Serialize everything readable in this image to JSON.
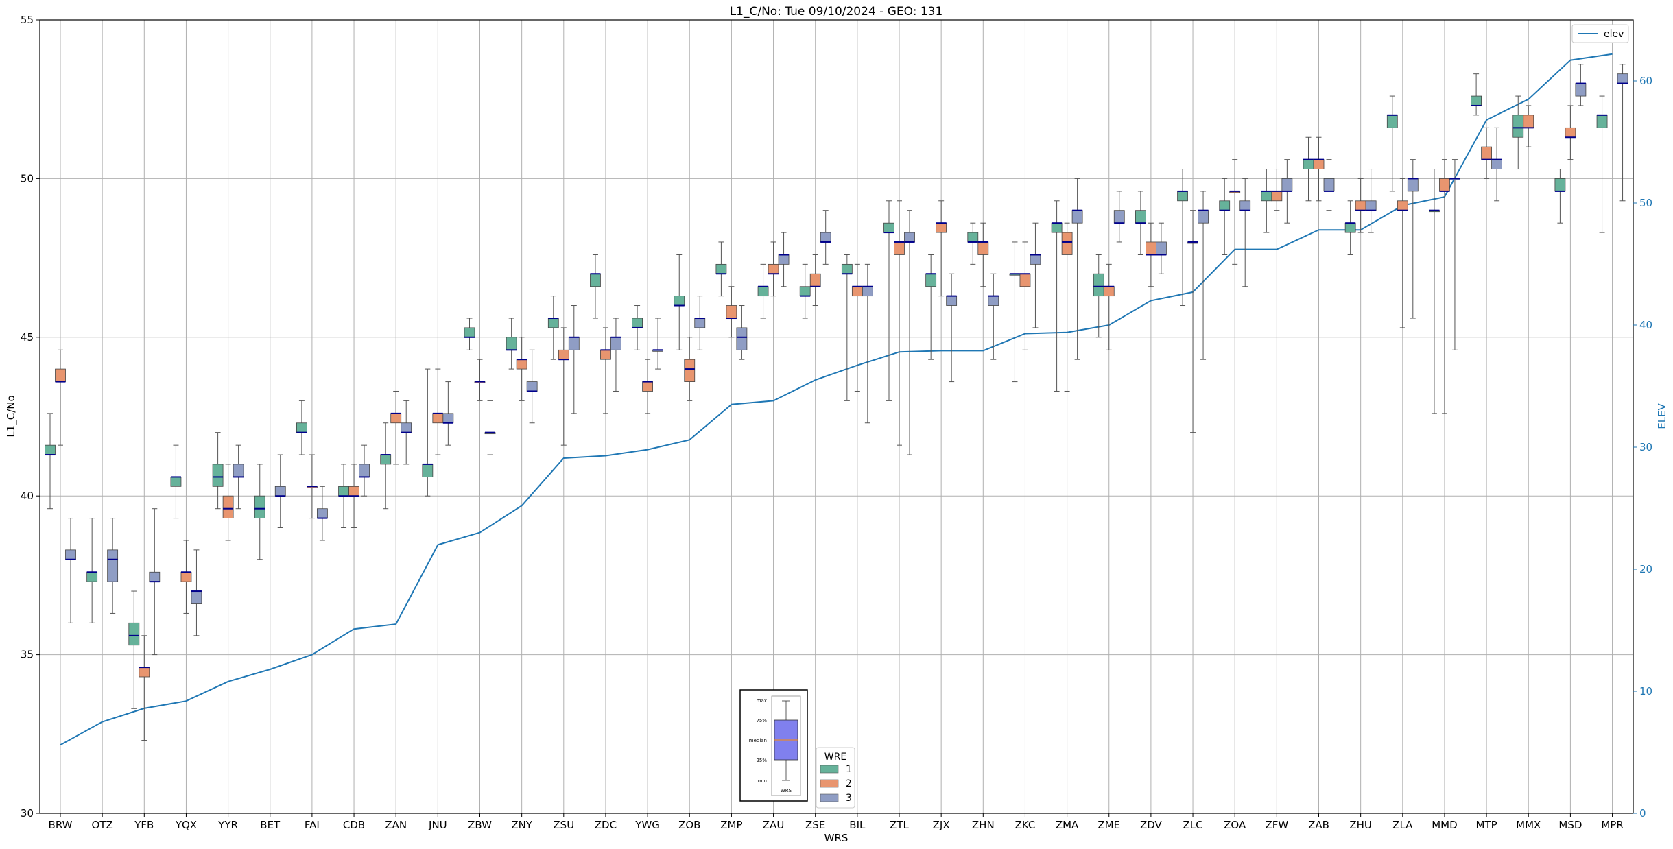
{
  "chart_data": {
    "type": "box",
    "title": "L1_C/No: Tue 09/10/2024 - GEO: 131",
    "xlabel": "WRS",
    "ylabel": "L1_C/No",
    "ylabel_right": "ELEV",
    "ylim": [
      30,
      55
    ],
    "ylim_right": [
      0,
      65
    ],
    "yticks": [
      "30",
      "35",
      "40",
      "45",
      "50",
      "55"
    ],
    "yticks_right": [
      "0",
      "10",
      "20",
      "30",
      "40",
      "50",
      "60"
    ],
    "grid": true,
    "categories": [
      "BRW",
      "OTZ",
      "YFB",
      "YQX",
      "YYR",
      "BET",
      "FAI",
      "CDB",
      "ZAN",
      "JNU",
      "ZBW",
      "ZNY",
      "ZSU",
      "ZDC",
      "YWG",
      "ZOB",
      "ZMP",
      "ZAU",
      "ZSE",
      "BIL",
      "ZTL",
      "ZJX",
      "ZHN",
      "ZKC",
      "ZMA",
      "ZME",
      "ZDV",
      "ZLC",
      "ZOA",
      "ZFW",
      "ZAB",
      "ZHU",
      "ZLA",
      "MMD",
      "MTP",
      "MMX",
      "MSD",
      "MPR"
    ],
    "wre_legend": {
      "title": "WRE",
      "entries": [
        "1",
        "2",
        "3"
      ]
    },
    "colors": {
      "1": "#66b29a",
      "2": "#e8956f",
      "3": "#8f9dc4",
      "elev": "#1f77b4",
      "median": "#00008b"
    },
    "elev_legend": "elev",
    "elev": [
      5.6,
      7.5,
      8.6,
      9.2,
      10.8,
      11.8,
      13.0,
      15.1,
      15.5,
      22.0,
      23.0,
      25.2,
      29.1,
      29.3,
      29.8,
      30.6,
      33.5,
      33.8,
      35.5,
      36.7,
      37.8,
      37.9,
      37.9,
      39.3,
      39.4,
      40.0,
      42.0,
      42.7,
      46.2,
      46.2,
      47.8,
      47.8,
      49.8,
      50.5,
      56.8,
      58.5,
      61.7,
      62.2
    ],
    "boxes": [
      {
        "cat": "BRW",
        "wre": 1,
        "min": 39.6,
        "q1": 41.3,
        "med": 41.3,
        "q3": 41.6,
        "max": 42.6
      },
      {
        "cat": "BRW",
        "wre": 2,
        "min": 41.6,
        "q1": 43.6,
        "med": 43.6,
        "q3": 44.0,
        "max": 44.6
      },
      {
        "cat": "BRW",
        "wre": 3,
        "min": 36.0,
        "q1": 38.0,
        "med": 38.0,
        "q3": 38.3,
        "max": 39.3
      },
      {
        "cat": "OTZ",
        "wre": 1,
        "min": 36.0,
        "q1": 37.3,
        "med": 37.6,
        "q3": 37.6,
        "max": 39.3
      },
      {
        "cat": "OTZ",
        "wre": 3,
        "min": 36.3,
        "q1": 37.3,
        "med": 38.0,
        "q3": 38.3,
        "max": 39.3
      },
      {
        "cat": "YFB",
        "wre": 1,
        "min": 33.3,
        "q1": 35.3,
        "med": 35.6,
        "q3": 36.0,
        "max": 37.0
      },
      {
        "cat": "YFB",
        "wre": 2,
        "min": 32.3,
        "q1": 34.3,
        "med": 34.6,
        "q3": 34.6,
        "max": 35.6
      },
      {
        "cat": "YFB",
        "wre": 3,
        "min": 35.0,
        "q1": 37.3,
        "med": 37.3,
        "q3": 37.6,
        "max": 39.6
      },
      {
        "cat": "YQX",
        "wre": 1,
        "min": 39.3,
        "q1": 40.3,
        "med": 40.6,
        "q3": 40.6,
        "max": 41.6
      },
      {
        "cat": "YQX",
        "wre": 2,
        "min": 36.3,
        "q1": 37.3,
        "med": 37.6,
        "q3": 37.6,
        "max": 38.6
      },
      {
        "cat": "YQX",
        "wre": 3,
        "min": 35.6,
        "q1": 36.6,
        "med": 37.0,
        "q3": 37.0,
        "max": 38.3
      },
      {
        "cat": "YYR",
        "wre": 1,
        "min": 39.6,
        "q1": 40.3,
        "med": 40.6,
        "q3": 41.0,
        "max": 42.0
      },
      {
        "cat": "YYR",
        "wre": 2,
        "min": 38.6,
        "q1": 39.3,
        "med": 39.6,
        "q3": 40.0,
        "max": 41.0
      },
      {
        "cat": "YYR",
        "wre": 3,
        "min": 39.6,
        "q1": 40.6,
        "med": 40.6,
        "q3": 41.0,
        "max": 41.6
      },
      {
        "cat": "BET",
        "wre": 1,
        "min": 38.0,
        "q1": 39.3,
        "med": 39.6,
        "q3": 40.0,
        "max": 41.0
      },
      {
        "cat": "BET",
        "wre": 3,
        "min": 39.0,
        "q1": 40.0,
        "med": 40.0,
        "q3": 40.3,
        "max": 41.3
      },
      {
        "cat": "FAI",
        "wre": 1,
        "min": 41.3,
        "q1": 42.0,
        "med": 42.0,
        "q3": 42.3,
        "max": 43.0
      },
      {
        "cat": "FAI",
        "wre": 2,
        "min": 39.3,
        "q1": 40.3,
        "med": 40.3,
        "q3": 40.3,
        "max": 41.3
      },
      {
        "cat": "FAI",
        "wre": 3,
        "min": 38.6,
        "q1": 39.3,
        "med": 39.3,
        "q3": 39.6,
        "max": 40.3
      },
      {
        "cat": "CDB",
        "wre": 1,
        "min": 39.0,
        "q1": 40.0,
        "med": 40.0,
        "q3": 40.3,
        "max": 41.0
      },
      {
        "cat": "CDB",
        "wre": 2,
        "min": 39.0,
        "q1": 40.0,
        "med": 40.0,
        "q3": 40.3,
        "max": 41.0
      },
      {
        "cat": "CDB",
        "wre": 3,
        "min": 40.0,
        "q1": 40.6,
        "med": 40.6,
        "q3": 41.0,
        "max": 41.6
      },
      {
        "cat": "ZAN",
        "wre": 1,
        "min": 39.6,
        "q1": 41.0,
        "med": 41.3,
        "q3": 41.3,
        "max": 42.3
      },
      {
        "cat": "ZAN",
        "wre": 2,
        "min": 41.0,
        "q1": 42.3,
        "med": 42.6,
        "q3": 42.6,
        "max": 43.3
      },
      {
        "cat": "ZAN",
        "wre": 3,
        "min": 41.0,
        "q1": 42.0,
        "med": 42.0,
        "q3": 42.3,
        "max": 43.0
      },
      {
        "cat": "JNU",
        "wre": 1,
        "min": 40.0,
        "q1": 40.6,
        "med": 41.0,
        "q3": 41.0,
        "max": 44.0
      },
      {
        "cat": "JNU",
        "wre": 2,
        "min": 41.3,
        "q1": 42.3,
        "med": 42.6,
        "q3": 42.6,
        "max": 44.0
      },
      {
        "cat": "JNU",
        "wre": 3,
        "min": 41.6,
        "q1": 42.3,
        "med": 42.3,
        "q3": 42.6,
        "max": 43.6
      },
      {
        "cat": "ZBW",
        "wre": 1,
        "min": 44.6,
        "q1": 45.0,
        "med": 45.0,
        "q3": 45.3,
        "max": 45.6
      },
      {
        "cat": "ZBW",
        "wre": 2,
        "min": 43.0,
        "q1": 43.6,
        "med": 43.6,
        "q3": 43.6,
        "max": 44.3
      },
      {
        "cat": "ZBW",
        "wre": 3,
        "min": 41.3,
        "q1": 42.0,
        "med": 42.0,
        "q3": 42.0,
        "max": 43.0
      },
      {
        "cat": "ZNY",
        "wre": 1,
        "min": 44.0,
        "q1": 44.6,
        "med": 44.6,
        "q3": 45.0,
        "max": 45.6
      },
      {
        "cat": "ZNY",
        "wre": 2,
        "min": 43.0,
        "q1": 44.0,
        "med": 44.3,
        "q3": 44.3,
        "max": 45.0
      },
      {
        "cat": "ZNY",
        "wre": 3,
        "min": 42.3,
        "q1": 43.3,
        "med": 43.3,
        "q3": 43.6,
        "max": 44.6
      },
      {
        "cat": "ZSU",
        "wre": 1,
        "min": 44.3,
        "q1": 45.3,
        "med": 45.6,
        "q3": 45.6,
        "max": 46.3
      },
      {
        "cat": "ZSU",
        "wre": 2,
        "min": 41.6,
        "q1": 44.3,
        "med": 44.3,
        "q3": 44.6,
        "max": 45.3
      },
      {
        "cat": "ZSU",
        "wre": 3,
        "min": 42.6,
        "q1": 44.6,
        "med": 45.0,
        "q3": 45.0,
        "max": 46.0
      },
      {
        "cat": "ZDC",
        "wre": 1,
        "min": 45.6,
        "q1": 46.6,
        "med": 47.0,
        "q3": 47.0,
        "max": 47.6
      },
      {
        "cat": "ZDC",
        "wre": 2,
        "min": 42.6,
        "q1": 44.3,
        "med": 44.6,
        "q3": 44.6,
        "max": 45.3
      },
      {
        "cat": "ZDC",
        "wre": 3,
        "min": 43.3,
        "q1": 44.6,
        "med": 45.0,
        "q3": 45.0,
        "max": 45.6
      },
      {
        "cat": "YWG",
        "wre": 1,
        "min": 44.6,
        "q1": 45.3,
        "med": 45.3,
        "q3": 45.6,
        "max": 46.0
      },
      {
        "cat": "YWG",
        "wre": 2,
        "min": 42.6,
        "q1": 43.3,
        "med": 43.6,
        "q3": 43.6,
        "max": 44.3
      },
      {
        "cat": "YWG",
        "wre": 3,
        "min": 44.0,
        "q1": 44.6,
        "med": 44.6,
        "q3": 44.6,
        "max": 45.6
      },
      {
        "cat": "ZOB",
        "wre": 1,
        "min": 44.6,
        "q1": 46.0,
        "med": 46.0,
        "q3": 46.3,
        "max": 47.6
      },
      {
        "cat": "ZOB",
        "wre": 2,
        "min": 43.0,
        "q1": 43.6,
        "med": 44.0,
        "q3": 44.3,
        "max": 45.0
      },
      {
        "cat": "ZOB",
        "wre": 3,
        "min": 44.6,
        "q1": 45.3,
        "med": 45.6,
        "q3": 45.6,
        "max": 46.3
      },
      {
        "cat": "ZMP",
        "wre": 1,
        "min": 46.3,
        "q1": 47.0,
        "med": 47.0,
        "q3": 47.3,
        "max": 48.0
      },
      {
        "cat": "ZMP",
        "wre": 2,
        "min": 45.0,
        "q1": 45.6,
        "med": 45.6,
        "q3": 46.0,
        "max": 46.6
      },
      {
        "cat": "ZMP",
        "wre": 3,
        "min": 44.3,
        "q1": 44.6,
        "med": 45.0,
        "q3": 45.3,
        "max": 46.0
      },
      {
        "cat": "ZAU",
        "wre": 1,
        "min": 45.6,
        "q1": 46.3,
        "med": 46.6,
        "q3": 46.6,
        "max": 47.3
      },
      {
        "cat": "ZAU",
        "wre": 2,
        "min": 46.3,
        "q1": 47.0,
        "med": 47.0,
        "q3": 47.3,
        "max": 48.0
      },
      {
        "cat": "ZAU",
        "wre": 3,
        "min": 46.6,
        "q1": 47.3,
        "med": 47.6,
        "q3": 47.6,
        "max": 48.3
      },
      {
        "cat": "ZSE",
        "wre": 1,
        "min": 45.6,
        "q1": 46.3,
        "med": 46.3,
        "q3": 46.6,
        "max": 47.3
      },
      {
        "cat": "ZSE",
        "wre": 2,
        "min": 46.0,
        "q1": 46.6,
        "med": 46.6,
        "q3": 47.0,
        "max": 47.6
      },
      {
        "cat": "ZSE",
        "wre": 3,
        "min": 47.3,
        "q1": 48.0,
        "med": 48.0,
        "q3": 48.3,
        "max": 49.0
      },
      {
        "cat": "BIL",
        "wre": 1,
        "min": 43.0,
        "q1": 47.0,
        "med": 47.0,
        "q3": 47.3,
        "max": 47.6
      },
      {
        "cat": "BIL",
        "wre": 2,
        "min": 43.3,
        "q1": 46.3,
        "med": 46.6,
        "q3": 46.6,
        "max": 47.3
      },
      {
        "cat": "BIL",
        "wre": 3,
        "min": 42.3,
        "q1": 46.3,
        "med": 46.6,
        "q3": 46.6,
        "max": 47.3
      },
      {
        "cat": "ZTL",
        "wre": 1,
        "min": 43.0,
        "q1": 48.3,
        "med": 48.3,
        "q3": 48.6,
        "max": 49.3
      },
      {
        "cat": "ZTL",
        "wre": 2,
        "min": 41.6,
        "q1": 47.6,
        "med": 48.0,
        "q3": 48.0,
        "max": 49.3
      },
      {
        "cat": "ZTL",
        "wre": 3,
        "min": 41.3,
        "q1": 48.0,
        "med": 48.0,
        "q3": 48.3,
        "max": 49.0
      },
      {
        "cat": "ZJX",
        "wre": 1,
        "min": 44.3,
        "q1": 46.6,
        "med": 47.0,
        "q3": 47.0,
        "max": 47.6
      },
      {
        "cat": "ZJX",
        "wre": 2,
        "min": 46.3,
        "q1": 48.3,
        "med": 48.6,
        "q3": 48.6,
        "max": 49.3
      },
      {
        "cat": "ZJX",
        "wre": 3,
        "min": 43.6,
        "q1": 46.0,
        "med": 46.3,
        "q3": 46.3,
        "max": 47.0
      },
      {
        "cat": "ZHN",
        "wre": 1,
        "min": 47.3,
        "q1": 48.0,
        "med": 48.0,
        "q3": 48.3,
        "max": 48.6
      },
      {
        "cat": "ZHN",
        "wre": 2,
        "min": 46.6,
        "q1": 47.6,
        "med": 48.0,
        "q3": 48.0,
        "max": 48.6
      },
      {
        "cat": "ZHN",
        "wre": 3,
        "min": 44.3,
        "q1": 46.0,
        "med": 46.3,
        "q3": 46.3,
        "max": 47.0
      },
      {
        "cat": "ZKC",
        "wre": 1,
        "min": 43.6,
        "q1": 47.0,
        "med": 47.0,
        "q3": 47.0,
        "max": 48.0
      },
      {
        "cat": "ZKC",
        "wre": 2,
        "min": 44.6,
        "q1": 46.6,
        "med": 47.0,
        "q3": 47.0,
        "max": 48.0
      },
      {
        "cat": "ZKC",
        "wre": 3,
        "min": 45.3,
        "q1": 47.3,
        "med": 47.6,
        "q3": 47.6,
        "max": 48.6
      },
      {
        "cat": "ZMA",
        "wre": 1,
        "min": 43.3,
        "q1": 48.3,
        "med": 48.6,
        "q3": 48.6,
        "max": 49.3
      },
      {
        "cat": "ZMA",
        "wre": 2,
        "min": 43.3,
        "q1": 47.6,
        "med": 48.0,
        "q3": 48.3,
        "max": 48.6
      },
      {
        "cat": "ZMA",
        "wre": 3,
        "min": 44.3,
        "q1": 48.6,
        "med": 49.0,
        "q3": 49.0,
        "max": 50.0
      },
      {
        "cat": "ZME",
        "wre": 1,
        "min": 45.0,
        "q1": 46.3,
        "med": 46.6,
        "q3": 47.0,
        "max": 47.6
      },
      {
        "cat": "ZME",
        "wre": 2,
        "min": 44.6,
        "q1": 46.3,
        "med": 46.6,
        "q3": 46.6,
        "max": 47.3
      },
      {
        "cat": "ZME",
        "wre": 3,
        "min": 48.0,
        "q1": 48.6,
        "med": 48.6,
        "q3": 49.0,
        "max": 49.6
      },
      {
        "cat": "ZDV",
        "wre": 1,
        "min": 47.6,
        "q1": 48.6,
        "med": 48.6,
        "q3": 49.0,
        "max": 49.6
      },
      {
        "cat": "ZDV",
        "wre": 2,
        "min": 46.6,
        "q1": 47.6,
        "med": 47.6,
        "q3": 48.0,
        "max": 48.6
      },
      {
        "cat": "ZDV",
        "wre": 3,
        "min": 47.0,
        "q1": 47.6,
        "med": 47.6,
        "q3": 48.0,
        "max": 48.6
      },
      {
        "cat": "ZLC",
        "wre": 1,
        "min": 46.0,
        "q1": 49.3,
        "med": 49.6,
        "q3": 49.6,
        "max": 50.3
      },
      {
        "cat": "ZLC",
        "wre": 2,
        "min": 42.0,
        "q1": 48.0,
        "med": 48.0,
        "q3": 48.0,
        "max": 49.0
      },
      {
        "cat": "ZLC",
        "wre": 3,
        "min": 44.3,
        "q1": 48.6,
        "med": 49.0,
        "q3": 49.0,
        "max": 49.6
      },
      {
        "cat": "ZOA",
        "wre": 1,
        "min": 47.6,
        "q1": 49.0,
        "med": 49.0,
        "q3": 49.3,
        "max": 50.0
      },
      {
        "cat": "ZOA",
        "wre": 2,
        "min": 47.3,
        "q1": 49.6,
        "med": 49.6,
        "q3": 49.6,
        "max": 50.6
      },
      {
        "cat": "ZOA",
        "wre": 3,
        "min": 46.6,
        "q1": 49.0,
        "med": 49.0,
        "q3": 49.3,
        "max": 50.0
      },
      {
        "cat": "ZFW",
        "wre": 1,
        "min": 48.3,
        "q1": 49.3,
        "med": 49.6,
        "q3": 49.6,
        "max": 50.3
      },
      {
        "cat": "ZFW",
        "wre": 2,
        "min": 49.0,
        "q1": 49.3,
        "med": 49.6,
        "q3": 49.6,
        "max": 50.3
      },
      {
        "cat": "ZFW",
        "wre": 3,
        "min": 48.6,
        "q1": 49.6,
        "med": 49.6,
        "q3": 50.0,
        "max": 50.6
      },
      {
        "cat": "ZAB",
        "wre": 1,
        "min": 49.3,
        "q1": 50.3,
        "med": 50.6,
        "q3": 50.6,
        "max": 51.3
      },
      {
        "cat": "ZAB",
        "wre": 2,
        "min": 49.3,
        "q1": 50.3,
        "med": 50.6,
        "q3": 50.6,
        "max": 51.3
      },
      {
        "cat": "ZAB",
        "wre": 3,
        "min": 49.0,
        "q1": 49.6,
        "med": 49.6,
        "q3": 50.0,
        "max": 50.6
      },
      {
        "cat": "ZHU",
        "wre": 1,
        "min": 47.6,
        "q1": 48.3,
        "med": 48.6,
        "q3": 48.6,
        "max": 49.3
      },
      {
        "cat": "ZHU",
        "wre": 2,
        "min": 48.3,
        "q1": 49.0,
        "med": 49.0,
        "q3": 49.3,
        "max": 50.0
      },
      {
        "cat": "ZHU",
        "wre": 3,
        "min": 48.3,
        "q1": 49.0,
        "med": 49.0,
        "q3": 49.3,
        "max": 50.3
      },
      {
        "cat": "ZLA",
        "wre": 1,
        "min": 49.6,
        "q1": 51.6,
        "med": 52.0,
        "q3": 52.0,
        "max": 52.6
      },
      {
        "cat": "ZLA",
        "wre": 2,
        "min": 45.3,
        "q1": 49.0,
        "med": 49.0,
        "q3": 49.3,
        "max": 50.0
      },
      {
        "cat": "ZLA",
        "wre": 3,
        "min": 45.6,
        "q1": 49.6,
        "med": 50.0,
        "q3": 50.0,
        "max": 50.6
      },
      {
        "cat": "MMD",
        "wre": 1,
        "min": 42.6,
        "q1": 49.0,
        "med": 49.0,
        "q3": 49.0,
        "max": 50.3
      },
      {
        "cat": "MMD",
        "wre": 2,
        "min": 42.6,
        "q1": 49.6,
        "med": 49.6,
        "q3": 50.0,
        "max": 50.6
      },
      {
        "cat": "MMD",
        "wre": 3,
        "min": 44.6,
        "q1": 50.0,
        "med": 50.0,
        "q3": 50.0,
        "max": 50.6
      },
      {
        "cat": "MTP",
        "wre": 1,
        "min": 52.0,
        "q1": 52.3,
        "med": 52.3,
        "q3": 52.6,
        "max": 53.3
      },
      {
        "cat": "MTP",
        "wre": 2,
        "min": 50.0,
        "q1": 50.6,
        "med": 50.6,
        "q3": 51.0,
        "max": 51.6
      },
      {
        "cat": "MTP",
        "wre": 3,
        "min": 49.3,
        "q1": 50.3,
        "med": 50.6,
        "q3": 50.6,
        "max": 51.6
      },
      {
        "cat": "MMX",
        "wre": 1,
        "min": 50.3,
        "q1": 51.3,
        "med": 51.6,
        "q3": 52.0,
        "max": 52.6
      },
      {
        "cat": "MMX",
        "wre": 2,
        "min": 51.0,
        "q1": 51.6,
        "med": 51.6,
        "q3": 52.0,
        "max": 52.3
      },
      {
        "cat": "MSD",
        "wre": 1,
        "min": 48.6,
        "q1": 49.6,
        "med": 49.6,
        "q3": 50.0,
        "max": 50.3
      },
      {
        "cat": "MSD",
        "wre": 2,
        "min": 50.6,
        "q1": 51.3,
        "med": 51.3,
        "q3": 51.6,
        "max": 52.3
      },
      {
        "cat": "MSD",
        "wre": 3,
        "min": 52.3,
        "q1": 52.6,
        "med": 53.0,
        "q3": 53.0,
        "max": 53.6
      },
      {
        "cat": "MPR",
        "wre": 1,
        "min": 48.3,
        "q1": 51.6,
        "med": 52.0,
        "q3": 52.0,
        "max": 52.6
      },
      {
        "cat": "MPR",
        "wre": 3,
        "min": 49.3,
        "q1": 53.0,
        "med": 53.0,
        "q3": 53.3,
        "max": 53.6
      }
    ],
    "inset": {
      "labels": [
        "max",
        "75%",
        "median",
        "25%",
        "min"
      ],
      "caption": "WRS"
    }
  }
}
